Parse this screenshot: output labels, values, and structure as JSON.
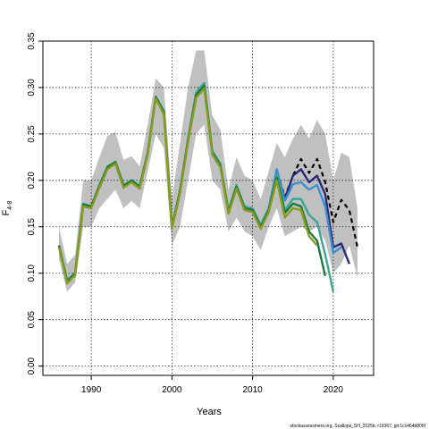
{
  "chart_data": {
    "type": "line",
    "xlabel": "Years",
    "ylabel": "F",
    "ylabel_sub": "4-8",
    "footer": "stockassessment.org, Scallops_SH_2025b, r19367, git:1cc464b806f",
    "xlim": [
      1984,
      2025
    ],
    "ylim": [
      -0.01,
      0.35
    ],
    "xticks": [
      1990,
      2000,
      2010,
      2020
    ],
    "yticks": [
      0.0,
      0.05,
      0.1,
      0.15,
      0.2,
      0.25,
      0.3,
      0.35
    ],
    "grid": true,
    "band": {
      "x": [
        1986,
        1987,
        1988,
        1989,
        1990,
        1991,
        1992,
        1993,
        1994,
        1995,
        1996,
        1997,
        1998,
        1999,
        2000,
        2001,
        2002,
        2003,
        2004,
        2005,
        2006,
        2007,
        2008,
        2009,
        2010,
        2011,
        2012,
        2013,
        2014,
        2015,
        2016,
        2017,
        2018,
        2019,
        2020,
        2021,
        2022,
        2023
      ],
      "upper": [
        0.15,
        0.11,
        0.12,
        0.2,
        0.2,
        0.225,
        0.248,
        0.252,
        0.222,
        0.226,
        0.215,
        0.26,
        0.31,
        0.3,
        0.18,
        0.24,
        0.3,
        0.34,
        0.34,
        0.27,
        0.255,
        0.19,
        0.225,
        0.205,
        0.2,
        0.18,
        0.21,
        0.24,
        0.225,
        0.245,
        0.26,
        0.245,
        0.265,
        0.25,
        0.2,
        0.23,
        0.225,
        0.17
      ],
      "lower": [
        0.115,
        0.08,
        0.09,
        0.15,
        0.15,
        0.17,
        0.18,
        0.19,
        0.17,
        0.178,
        0.17,
        0.21,
        0.25,
        0.235,
        0.13,
        0.15,
        0.2,
        0.25,
        0.26,
        0.2,
        0.19,
        0.145,
        0.16,
        0.145,
        0.14,
        0.125,
        0.15,
        0.17,
        0.14,
        0.145,
        0.15,
        0.145,
        0.15,
        0.135,
        0.1,
        0.11,
        0.13,
        0.095
      ]
    },
    "series": [
      {
        "color": "#000000",
        "dashed": true,
        "x": [
          2012,
          2013,
          2014,
          2015,
          2016,
          2017,
          2018,
          2019,
          2020,
          2021,
          2022,
          2023
        ],
        "values": [
          0.17,
          0.21,
          0.182,
          0.205,
          0.223,
          0.208,
          0.223,
          0.198,
          0.155,
          0.179,
          0.168,
          0.128
        ]
      },
      {
        "color": "#2c2a7a",
        "dashed": false,
        "x": [
          2012,
          2013,
          2014,
          2015,
          2016,
          2017,
          2018,
          2019,
          2020,
          2021,
          2022
        ],
        "values": [
          0.17,
          0.21,
          0.18,
          0.205,
          0.212,
          0.198,
          0.205,
          0.185,
          0.128,
          0.132,
          0.11
        ]
      },
      {
        "color": "#3a8fd4",
        "dashed": false,
        "x": [
          2012,
          2013,
          2014,
          2015,
          2016,
          2017,
          2018,
          2019,
          2020,
          2021
        ],
        "values": [
          0.17,
          0.212,
          0.178,
          0.196,
          0.198,
          0.19,
          0.195,
          0.172,
          0.122,
          0.128
        ]
      },
      {
        "color": "#3aa59a",
        "dashed": false,
        "x": [
          1986,
          1987,
          1988,
          1989,
          1990,
          1991,
          1992,
          1993,
          1994,
          1995,
          1996,
          1997,
          1998,
          1999,
          2000,
          2001,
          2002,
          2003,
          2004,
          2005,
          2006,
          2007,
          2008,
          2009,
          2010,
          2011,
          2012,
          2013,
          2014,
          2015,
          2016,
          2017,
          2018,
          2019,
          2020
        ],
        "values": [
          0.13,
          0.093,
          0.1,
          0.175,
          0.172,
          0.195,
          0.215,
          0.22,
          0.195,
          0.2,
          0.194,
          0.23,
          0.29,
          0.275,
          0.15,
          0.19,
          0.245,
          0.295,
          0.305,
          0.232,
          0.218,
          0.168,
          0.195,
          0.172,
          0.17,
          0.152,
          0.17,
          0.205,
          0.168,
          0.18,
          0.18,
          0.163,
          0.155,
          0.12,
          0.08
        ]
      },
      {
        "color": "#1f7a3a",
        "dashed": false,
        "x": [
          1986,
          1987,
          1988,
          1989,
          1990,
          1991,
          1992,
          1993,
          1994,
          1995,
          1996,
          1997,
          1998,
          1999,
          2000,
          2001,
          2002,
          2003,
          2004,
          2005,
          2006,
          2007,
          2008,
          2009,
          2010,
          2011,
          2012,
          2013,
          2014,
          2015,
          2016,
          2017,
          2018,
          2019
        ],
        "values": [
          0.13,
          0.091,
          0.1,
          0.174,
          0.172,
          0.194,
          0.214,
          0.22,
          0.194,
          0.2,
          0.193,
          0.23,
          0.29,
          0.273,
          0.15,
          0.188,
          0.243,
          0.292,
          0.302,
          0.23,
          0.216,
          0.166,
          0.193,
          0.17,
          0.168,
          0.15,
          0.168,
          0.203,
          0.165,
          0.175,
          0.172,
          0.145,
          0.135,
          0.097
        ]
      },
      {
        "color": "#8a9a1e",
        "dashed": false,
        "x": [
          1986,
          1987,
          1988,
          1989,
          1990,
          1991,
          1992,
          1993,
          1994,
          1995,
          1996,
          1997,
          1998,
          1999,
          2000,
          2001,
          2002,
          2003,
          2004,
          2005,
          2006,
          2007,
          2008,
          2009,
          2010,
          2011,
          2012,
          2013,
          2014,
          2015,
          2016,
          2017,
          2018
        ],
        "values": [
          0.128,
          0.089,
          0.098,
          0.172,
          0.17,
          0.192,
          0.212,
          0.218,
          0.192,
          0.198,
          0.191,
          0.228,
          0.288,
          0.271,
          0.148,
          0.186,
          0.241,
          0.289,
          0.299,
          0.228,
          0.214,
          0.164,
          0.191,
          0.168,
          0.166,
          0.148,
          0.166,
          0.2,
          0.16,
          0.17,
          0.168,
          0.14,
          0.13
        ]
      }
    ]
  }
}
